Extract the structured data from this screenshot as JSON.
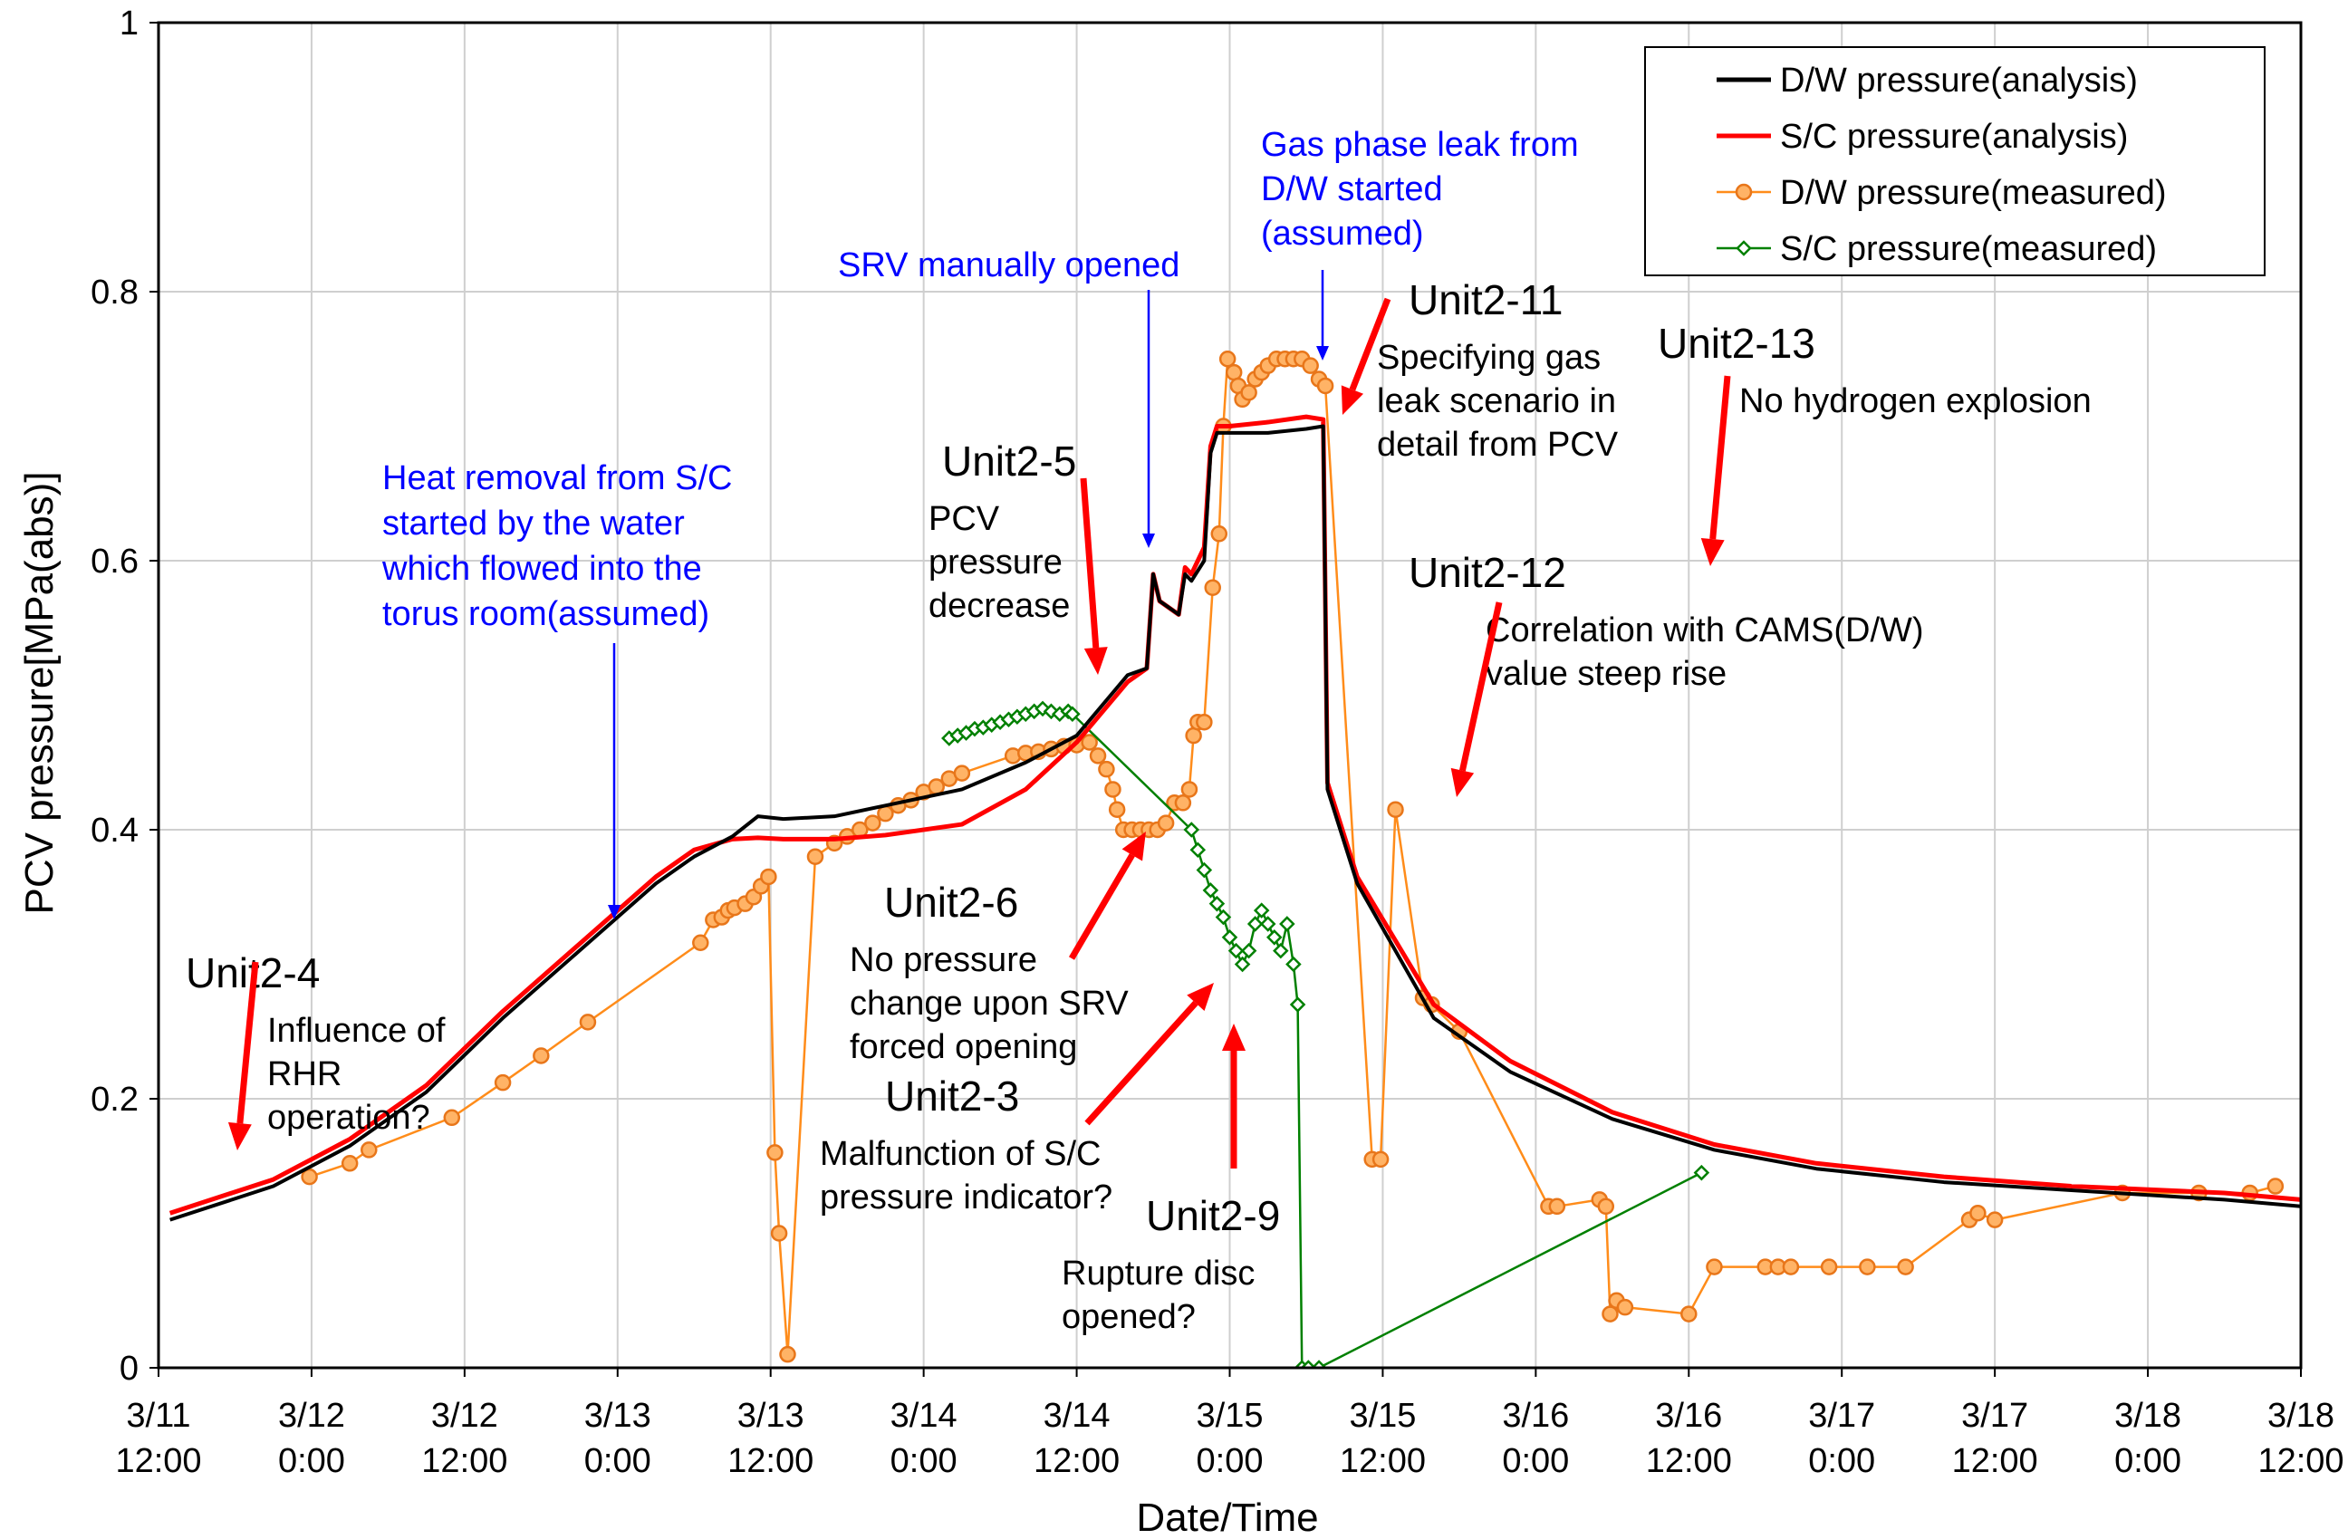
{
  "chart_data": {
    "type": "line",
    "xlabel": "Date/Time",
    "ylabel": "PCV pressure[MPa(abs)]",
    "ylim": [
      0,
      1
    ],
    "xlim": [
      "2011-03-11 12:00",
      "2011-03-18 12:00"
    ],
    "grid": true,
    "legend_position": "top-right",
    "y_ticks": [
      "0",
      "0.2",
      "0.4",
      "0.6",
      "0.8",
      "1"
    ],
    "x_ticks": [
      {
        "date": "3/11",
        "time": "12:00"
      },
      {
        "date": "3/12",
        "time": "0:00"
      },
      {
        "date": "3/12",
        "time": "12:00"
      },
      {
        "date": "3/13",
        "time": "0:00"
      },
      {
        "date": "3/13",
        "time": "12:00"
      },
      {
        "date": "3/14",
        "time": "0:00"
      },
      {
        "date": "3/14",
        "time": "12:00"
      },
      {
        "date": "3/15",
        "time": "0:00"
      },
      {
        "date": "3/15",
        "time": "12:00"
      },
      {
        "date": "3/16",
        "time": "0:00"
      },
      {
        "date": "3/16",
        "time": "12:00"
      },
      {
        "date": "3/17",
        "time": "0:00"
      },
      {
        "date": "3/17",
        "time": "12:00"
      },
      {
        "date": "3/18",
        "time": "0:00"
      },
      {
        "date": "3/18",
        "time": "12:00"
      }
    ],
    "series": [
      {
        "name": "D/W pressure(analysis)",
        "color": "#000000",
        "style": "line",
        "points": [
          [
            "3/11 12:54",
            0.11
          ],
          [
            "3/11 21:00",
            0.135
          ],
          [
            "3/12 03:00",
            0.165
          ],
          [
            "3/12 09:00",
            0.205
          ],
          [
            "3/12 15:00",
            0.26
          ],
          [
            "3/12 21:00",
            0.31
          ],
          [
            "3/13 03:00",
            0.36
          ],
          [
            "3/13 06:00",
            0.38
          ],
          [
            "3/13 09:00",
            0.395
          ],
          [
            "3/13 11:00",
            0.41
          ],
          [
            "3/13 13:00",
            0.408
          ],
          [
            "3/13 17:00",
            0.41
          ],
          [
            "3/13 21:00",
            0.418
          ],
          [
            "3/14 03:00",
            0.43
          ],
          [
            "3/14 08:00",
            0.45
          ],
          [
            "3/14 12:00",
            0.47
          ],
          [
            "3/14 16:00",
            0.515
          ],
          [
            "3/14 17:30",
            0.52
          ],
          [
            "3/14 18:00",
            0.59
          ],
          [
            "3/14 18:30",
            0.57
          ],
          [
            "3/14 20:00",
            0.56
          ],
          [
            "3/14 20:30",
            0.59
          ],
          [
            "3/14 21:00",
            0.585
          ],
          [
            "3/14 22:00",
            0.6
          ],
          [
            "3/14 22:30",
            0.68
          ],
          [
            "3/14 23:00",
            0.695
          ],
          [
            "3/15 00:00",
            0.695
          ],
          [
            "3/15 03:00",
            0.695
          ],
          [
            "3/15 06:00",
            0.698
          ],
          [
            "3/15 07:20",
            0.7
          ],
          [
            "3/15 07:40",
            0.43
          ],
          [
            "3/15 10:00",
            0.36
          ],
          [
            "3/15 16:00",
            0.26
          ],
          [
            "3/15 22:00",
            0.22
          ],
          [
            "3/16 06:00",
            0.185
          ],
          [
            "3/16 14:00",
            0.162
          ],
          [
            "3/16 22:00",
            0.148
          ],
          [
            "3/17 08:00",
            0.138
          ],
          [
            "3/17 18:00",
            0.132
          ],
          [
            "3/18 06:00",
            0.125
          ],
          [
            "3/18 12:00",
            0.12
          ]
        ]
      },
      {
        "name": "S/C pressure(analysis)",
        "color": "#ff0000",
        "style": "line",
        "points": [
          [
            "3/11 12:54",
            0.115
          ],
          [
            "3/11 21:00",
            0.14
          ],
          [
            "3/12 03:00",
            0.17
          ],
          [
            "3/12 09:00",
            0.21
          ],
          [
            "3/12 15:00",
            0.265
          ],
          [
            "3/12 21:00",
            0.315
          ],
          [
            "3/13 03:00",
            0.365
          ],
          [
            "3/13 06:00",
            0.385
          ],
          [
            "3/13 09:00",
            0.393
          ],
          [
            "3/13 11:00",
            0.394
          ],
          [
            "3/13 13:00",
            0.393
          ],
          [
            "3/13 17:00",
            0.393
          ],
          [
            "3/13 21:00",
            0.396
          ],
          [
            "3/14 03:00",
            0.404
          ],
          [
            "3/14 08:00",
            0.43
          ],
          [
            "3/14 12:00",
            0.465
          ],
          [
            "3/14 16:00",
            0.51
          ],
          [
            "3/14 17:30",
            0.52
          ],
          [
            "3/14 18:00",
            0.59
          ],
          [
            "3/14 18:30",
            0.57
          ],
          [
            "3/14 20:00",
            0.56
          ],
          [
            "3/14 20:30",
            0.595
          ],
          [
            "3/14 21:00",
            0.59
          ],
          [
            "3/14 22:00",
            0.61
          ],
          [
            "3/14 22:30",
            0.685
          ],
          [
            "3/14 23:00",
            0.7
          ],
          [
            "3/15 00:00",
            0.7
          ],
          [
            "3/15 03:00",
            0.703
          ],
          [
            "3/15 06:00",
            0.707
          ],
          [
            "3/15 07:20",
            0.705
          ],
          [
            "3/15 07:40",
            0.435
          ],
          [
            "3/15 10:00",
            0.365
          ],
          [
            "3/15 16:00",
            0.27
          ],
          [
            "3/15 22:00",
            0.228
          ],
          [
            "3/16 06:00",
            0.19
          ],
          [
            "3/16 14:00",
            0.166
          ],
          [
            "3/16 22:00",
            0.152
          ],
          [
            "3/17 08:00",
            0.142
          ],
          [
            "3/17 18:00",
            0.135
          ],
          [
            "3/18 06:00",
            0.13
          ],
          [
            "3/18 12:00",
            0.125
          ]
        ]
      },
      {
        "name": "D/W pressure(measured)",
        "color": "#ff8c1a",
        "marker": "circle",
        "points": [
          [
            "3/11 23:50",
            0.142
          ],
          [
            "3/12 03:00",
            0.152
          ],
          [
            "3/12 04:30",
            0.162
          ],
          [
            "3/12 11:00",
            0.186
          ],
          [
            "3/12 15:00",
            0.212
          ],
          [
            "3/12 18:00",
            0.232
          ],
          [
            "3/12 21:40",
            0.257
          ],
          [
            "3/13 06:30",
            0.316
          ],
          [
            "3/13 07:30",
            0.333
          ],
          [
            "3/13 08:10",
            0.335
          ],
          [
            "3/13 08:40",
            0.34
          ],
          [
            "3/13 09:10",
            0.342
          ],
          [
            "3/13 10:00",
            0.345
          ],
          [
            "3/13 10:40",
            0.35
          ],
          [
            "3/13 11:15",
            0.358
          ],
          [
            "3/13 11:50",
            0.365
          ],
          [
            "3/13 12:20",
            0.16
          ],
          [
            "3/13 12:40",
            0.1
          ],
          [
            "3/13 13:20",
            0.01
          ],
          [
            "3/13 15:30",
            0.38
          ],
          [
            "3/13 17:00",
            0.39
          ],
          [
            "3/13 18:00",
            0.395
          ],
          [
            "3/13 19:00",
            0.4
          ],
          [
            "3/13 20:00",
            0.405
          ],
          [
            "3/13 21:00",
            0.412
          ],
          [
            "3/13 22:00",
            0.418
          ],
          [
            "3/13 23:00",
            0.422
          ],
          [
            "3/14 00:00",
            0.428
          ],
          [
            "3/14 01:00",
            0.432
          ],
          [
            "3/14 02:00",
            0.438
          ],
          [
            "3/14 03:00",
            0.442
          ],
          [
            "3/14 07:00",
            0.455
          ],
          [
            "3/14 08:00",
            0.457
          ],
          [
            "3/14 09:00",
            0.458
          ],
          [
            "3/14 10:00",
            0.46
          ],
          [
            "3/14 11:00",
            0.462
          ],
          [
            "3/14 12:00",
            0.463
          ],
          [
            "3/14 13:00",
            0.465
          ],
          [
            "3/14 13:40",
            0.455
          ],
          [
            "3/14 14:20",
            0.445
          ],
          [
            "3/14 14:50",
            0.43
          ],
          [
            "3/14 15:10",
            0.415
          ],
          [
            "3/14 15:40",
            0.4
          ],
          [
            "3/14 16:20",
            0.4
          ],
          [
            "3/14 17:00",
            0.4
          ],
          [
            "3/14 17:40",
            0.4
          ],
          [
            "3/14 18:20",
            0.4
          ],
          [
            "3/14 19:00",
            0.405
          ],
          [
            "3/14 19:40",
            0.42
          ],
          [
            "3/14 20:20",
            0.42
          ],
          [
            "3/14 20:50",
            0.43
          ],
          [
            "3/14 21:10",
            0.47
          ],
          [
            "3/14 21:30",
            0.48
          ],
          [
            "3/14 22:00",
            0.48
          ],
          [
            "3/14 22:40",
            0.58
          ],
          [
            "3/14 23:10",
            0.62
          ],
          [
            "3/14 23:30",
            0.7
          ],
          [
            "3/14 23:50",
            0.75
          ],
          [
            "3/15 00:20",
            0.74
          ],
          [
            "3/15 00:40",
            0.73
          ],
          [
            "3/15 01:00",
            0.72
          ],
          [
            "3/15 01:30",
            0.725
          ],
          [
            "3/15 02:00",
            0.735
          ],
          [
            "3/15 02:30",
            0.74
          ],
          [
            "3/15 03:00",
            0.745
          ],
          [
            "3/15 03:40",
            0.75
          ],
          [
            "3/15 04:20",
            0.75
          ],
          [
            "3/15 05:00",
            0.75
          ],
          [
            "3/15 05:40",
            0.75
          ],
          [
            "3/15 06:20",
            0.745
          ],
          [
            "3/15 07:00",
            0.735
          ],
          [
            "3/15 07:30",
            0.73
          ],
          [
            "3/15 11:10",
            0.155
          ],
          [
            "3/15 11:50",
            0.155
          ],
          [
            "3/15 13:00",
            0.415
          ],
          [
            "3/15 15:10",
            0.275
          ],
          [
            "3/15 15:50",
            0.27
          ],
          [
            "3/15 18:00",
            0.25
          ],
          [
            "3/16 01:00",
            0.12
          ],
          [
            "3/16 01:40",
            0.12
          ],
          [
            "3/16 05:00",
            0.125
          ],
          [
            "3/16 05:30",
            0.12
          ],
          [
            "3/16 05:50",
            0.04
          ],
          [
            "3/16 06:20",
            0.05
          ],
          [
            "3/16 07:00",
            0.045
          ],
          [
            "3/16 12:00",
            0.04
          ],
          [
            "3/16 14:00",
            0.075
          ],
          [
            "3/16 18:00",
            0.075
          ],
          [
            "3/16 19:00",
            0.075
          ],
          [
            "3/16 20:00",
            0.075
          ],
          [
            "3/16 23:00",
            0.075
          ],
          [
            "3/17 02:00",
            0.075
          ],
          [
            "3/17 05:00",
            0.075
          ],
          [
            "3/17 10:00",
            0.11
          ],
          [
            "3/17 10:40",
            0.115
          ],
          [
            "3/17 12:00",
            0.11
          ],
          [
            "3/17 22:00",
            0.13
          ],
          [
            "3/18 04:00",
            0.13
          ],
          [
            "3/18 08:00",
            0.13
          ],
          [
            "3/18 10:00",
            0.135
          ]
        ]
      },
      {
        "name": "S/C pressure(measured)",
        "color": "#008000",
        "marker": "diamond",
        "points": [
          [
            "3/14 02:00",
            0.468
          ],
          [
            "3/14 02:40",
            0.47
          ],
          [
            "3/14 03:20",
            0.472
          ],
          [
            "3/14 04:00",
            0.475
          ],
          [
            "3/14 04:40",
            0.476
          ],
          [
            "3/14 05:20",
            0.478
          ],
          [
            "3/14 06:00",
            0.48
          ],
          [
            "3/14 06:40",
            0.482
          ],
          [
            "3/14 07:20",
            0.484
          ],
          [
            "3/14 08:00",
            0.486
          ],
          [
            "3/14 08:40",
            0.488
          ],
          [
            "3/14 09:20",
            0.49
          ],
          [
            "3/14 10:00",
            0.488
          ],
          [
            "3/14 10:40",
            0.486
          ],
          [
            "3/14 11:20",
            0.488
          ],
          [
            "3/14 11:40",
            0.486
          ],
          [
            "3/14 21:00",
            0.4
          ],
          [
            "3/14 21:30",
            0.385
          ],
          [
            "3/14 22:00",
            0.37
          ],
          [
            "3/14 22:30",
            0.355
          ],
          [
            "3/14 23:00",
            0.345
          ],
          [
            "3/14 23:30",
            0.335
          ],
          [
            "3/15 00:00",
            0.32
          ],
          [
            "3/15 00:30",
            0.31
          ],
          [
            "3/15 01:00",
            0.3
          ],
          [
            "3/15 01:30",
            0.31
          ],
          [
            "3/15 02:00",
            0.33
          ],
          [
            "3/15 02:30",
            0.34
          ],
          [
            "3/15 03:00",
            0.33
          ],
          [
            "3/15 03:30",
            0.32
          ],
          [
            "3/15 04:00",
            0.31
          ],
          [
            "3/15 04:30",
            0.33
          ],
          [
            "3/15 05:00",
            0.3
          ],
          [
            "3/15 05:20",
            0.27
          ],
          [
            "3/15 05:40",
            0.0
          ],
          [
            "3/15 06:10",
            0.0
          ],
          [
            "3/15 07:00",
            0.0
          ],
          [
            "3/16 13:00",
            0.145
          ]
        ]
      }
    ],
    "annotations": {
      "unit2_4": {
        "title": "Unit2-4",
        "lines": [
          "Influence of",
          "RHR",
          "operation?"
        ]
      },
      "unit2_5": {
        "title": "Unit2-5",
        "lines": [
          "PCV",
          "pressure",
          "decrease"
        ]
      },
      "unit2_6": {
        "title": "Unit2-6",
        "lines": [
          "No pressure",
          "change upon SRV",
          "forced opening"
        ]
      },
      "unit2_3": {
        "title": "Unit2-3",
        "lines": [
          "Malfunction of S/C",
          "pressure indicator?"
        ]
      },
      "unit2_9": {
        "title": "Unit2-9",
        "lines": [
          "Rupture disc",
          "opened?"
        ]
      },
      "unit2_11": {
        "title": "Unit2-11",
        "lines": [
          "Specifying gas",
          "leak scenario in",
          "detail from PCV"
        ]
      },
      "unit2_12": {
        "title": "Unit2-12",
        "lines": [
          "Correlation with CAMS(D/W)",
          "value steep rise"
        ]
      },
      "unit2_13": {
        "title": "Unit2-13",
        "lines": [
          "No hydrogen explosion"
        ]
      },
      "heat_removal": {
        "lines": [
          "Heat removal from S/C",
          "started by the water",
          "which flowed into the",
          "torus room(assumed)"
        ]
      },
      "srv_opened": {
        "lines": [
          "SRV manually opened"
        ]
      },
      "gas_leak": {
        "lines": [
          "Gas phase leak from",
          "D/W started",
          "(assumed)"
        ]
      }
    }
  }
}
